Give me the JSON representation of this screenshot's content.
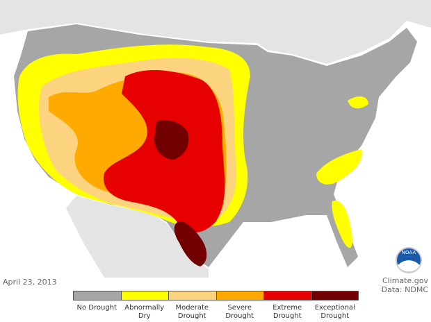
{
  "date": "April 23, 2013",
  "credit": {
    "site": "Climate.gov",
    "source": "Data: NDMC"
  },
  "logo": "NOAA",
  "legend": [
    {
      "label": "No Drought",
      "color": "#a6a6a6"
    },
    {
      "label": "Abnormally Dry",
      "color": "#ffff00"
    },
    {
      "label": "Moderate Drought",
      "color": "#fcd37f"
    },
    {
      "label": "Severe Drought",
      "color": "#ffaa00"
    },
    {
      "label": "Extreme Drought",
      "color": "#e60000"
    },
    {
      "label": "Exceptional Drought",
      "color": "#730000"
    }
  ]
}
